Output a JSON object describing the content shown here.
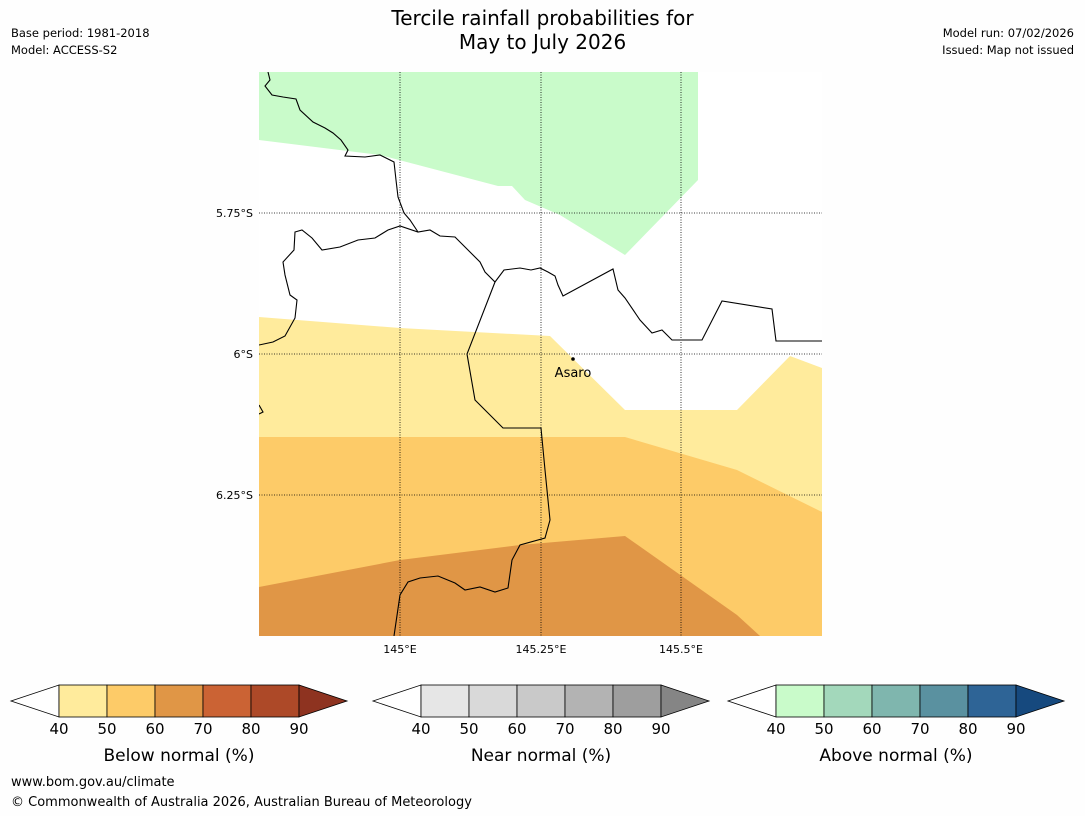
{
  "header": {
    "title_line1": "Tercile rainfall probabilities for",
    "title_line2": "May to July 2026",
    "base_period": "Base period: 1981-2018",
    "model": "Model: ACCESS-S2",
    "model_run": "Model run: 07/02/2026",
    "issued": "Issued: Map not issued"
  },
  "map": {
    "lat_labels": [
      "5.75°S",
      "6°S",
      "6.25°S"
    ],
    "lon_labels": [
      "145°E",
      "145.25°E",
      "145.5°E"
    ],
    "place": "Asaro",
    "colors": {
      "above_40_50": "#c9fbca",
      "below_40_50": "#ffeb9c",
      "below_50_60": "#fdcb68",
      "below_60_70": "#e09646"
    }
  },
  "legends": [
    {
      "title": "Below normal (%)",
      "ticks": [
        "40",
        "50",
        "60",
        "70",
        "80",
        "90"
      ],
      "colors": [
        "#ffffff",
        "#ffeb9c",
        "#fdcb68",
        "#e09646",
        "#cb6334",
        "#ad4928",
        "#8e3320"
      ]
    },
    {
      "title": "Near normal (%)",
      "ticks": [
        "40",
        "50",
        "60",
        "70",
        "80",
        "90"
      ],
      "colors": [
        "#ffffff",
        "#e6e6e6",
        "#d9d9d9",
        "#c9c9c9",
        "#b3b3b3",
        "#9e9e9e",
        "#858585"
      ]
    },
    {
      "title": "Above normal (%)",
      "ticks": [
        "40",
        "50",
        "60",
        "70",
        "80",
        "90"
      ],
      "colors": [
        "#ffffff",
        "#c9fbca",
        "#a3d8bb",
        "#7fb6ae",
        "#5a91a0",
        "#2e6496",
        "#16497e"
      ]
    }
  ],
  "footer": {
    "url": "www.bom.gov.au/climate",
    "copyright": "© Commonwealth of Australia 2026, Australian Bureau of Meteorology"
  }
}
